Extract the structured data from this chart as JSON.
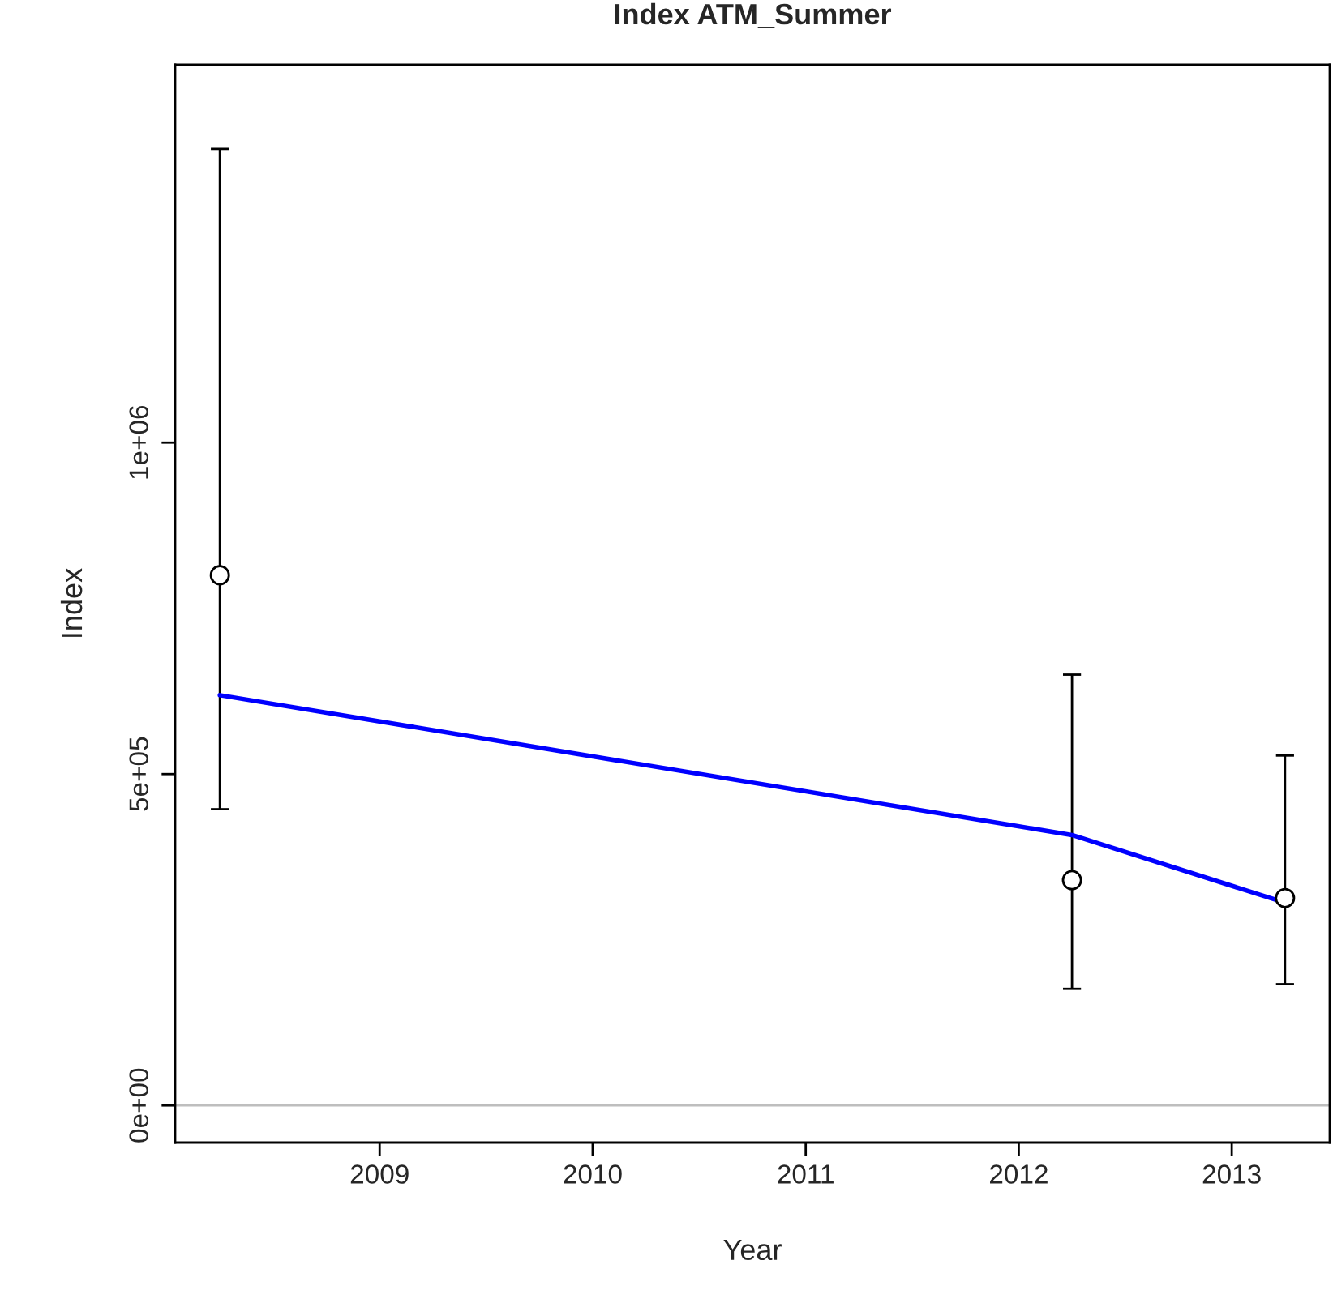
{
  "chart_data": {
    "type": "scatter",
    "title": "Index ATM_Summer",
    "xlabel": "Year",
    "ylabel": "Index",
    "xlim": [
      2008.04,
      2013.46
    ],
    "xticks": [
      2009,
      2010,
      2011,
      2012,
      2013
    ],
    "ylim": [
      -56000,
      1570000
    ],
    "yticks": [
      {
        "value": 0,
        "label": "0e+00"
      },
      {
        "value": 500000,
        "label": "5e+05"
      },
      {
        "value": 1000000,
        "label": "1e+06"
      }
    ],
    "series": [
      {
        "x": [
          2008.25,
          2012.25,
          2013.25
        ],
        "values": [
          800000,
          340000,
          313000
        ],
        "errors": [
          [
            447000,
            1443000
          ],
          [
            176000,
            650000
          ],
          [
            183000,
            528000
          ]
        ],
        "color": "#000000",
        "marker": "circle"
      },
      {
        "type": "line",
        "x": [
          2008.25,
          2012.25,
          2013.25
        ],
        "values": [
          619000,
          408000,
          306000
        ],
        "color": "#0000ff",
        "line_style": "solid"
      }
    ],
    "ref_lines": [
      {
        "axis": "y",
        "value": 0,
        "color": "#bebebe"
      }
    ],
    "grid": false
  }
}
